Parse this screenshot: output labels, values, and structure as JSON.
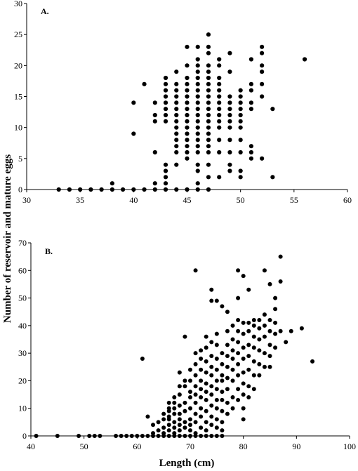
{
  "chart_data": [
    {
      "type": "scatter",
      "panel_label": "A.",
      "xlim": [
        30,
        60
      ],
      "ylim": [
        0,
        30
      ],
      "x_ticks": [
        30,
        35,
        40,
        45,
        50,
        55,
        60
      ],
      "y_ticks": [
        0,
        5,
        10,
        15,
        20,
        25,
        30
      ],
      "grid": false,
      "points": [
        [
          33,
          0
        ],
        [
          34,
          0
        ],
        [
          35,
          0
        ],
        [
          36,
          0
        ],
        [
          37,
          0
        ],
        [
          38,
          0
        ],
        [
          38,
          1
        ],
        [
          39,
          0
        ],
        [
          40,
          0
        ],
        [
          40,
          9
        ],
        [
          40,
          14
        ],
        [
          41,
          0
        ],
        [
          41,
          17
        ],
        [
          42,
          0
        ],
        [
          42,
          1
        ],
        [
          42,
          6
        ],
        [
          42,
          11
        ],
        [
          42,
          12
        ],
        [
          42,
          14
        ],
        [
          43,
          0
        ],
        [
          43,
          1
        ],
        [
          43,
          2
        ],
        [
          43,
          3
        ],
        [
          43,
          4
        ],
        [
          43,
          11
        ],
        [
          43,
          12
        ],
        [
          43,
          13
        ],
        [
          43,
          14
        ],
        [
          43,
          15
        ],
        [
          43,
          16
        ],
        [
          43,
          17
        ],
        [
          43,
          18
        ],
        [
          44,
          0
        ],
        [
          44,
          4
        ],
        [
          44,
          6
        ],
        [
          44,
          7
        ],
        [
          44,
          8
        ],
        [
          44,
          9
        ],
        [
          44,
          10
        ],
        [
          44,
          11
        ],
        [
          44,
          12
        ],
        [
          44,
          13
        ],
        [
          44,
          14
        ],
        [
          44,
          15
        ],
        [
          44,
          16
        ],
        [
          44,
          17
        ],
        [
          44,
          19
        ],
        [
          45,
          0
        ],
        [
          45,
          5
        ],
        [
          45,
          6
        ],
        [
          45,
          7
        ],
        [
          45,
          8
        ],
        [
          45,
          9
        ],
        [
          45,
          10
        ],
        [
          45,
          11
        ],
        [
          45,
          12
        ],
        [
          45,
          13
        ],
        [
          45,
          14
        ],
        [
          45,
          15
        ],
        [
          45,
          16
        ],
        [
          45,
          17
        ],
        [
          45,
          18
        ],
        [
          45,
          20
        ],
        [
          45,
          23
        ],
        [
          46,
          0
        ],
        [
          46,
          1
        ],
        [
          46,
          3
        ],
        [
          46,
          4
        ],
        [
          46,
          6
        ],
        [
          46,
          7
        ],
        [
          46,
          8
        ],
        [
          46,
          9
        ],
        [
          46,
          10
        ],
        [
          46,
          11
        ],
        [
          46,
          12
        ],
        [
          46,
          13
        ],
        [
          46,
          14
        ],
        [
          46,
          15
        ],
        [
          46,
          16
        ],
        [
          46,
          17
        ],
        [
          46,
          18
        ],
        [
          46,
          19
        ],
        [
          46,
          20
        ],
        [
          46,
          21
        ],
        [
          46,
          23
        ],
        [
          47,
          0
        ],
        [
          47,
          2
        ],
        [
          47,
          4
        ],
        [
          47,
          6
        ],
        [
          47,
          7
        ],
        [
          47,
          8
        ],
        [
          47,
          9
        ],
        [
          47,
          10
        ],
        [
          47,
          11
        ],
        [
          47,
          12
        ],
        [
          47,
          13
        ],
        [
          47,
          14
        ],
        [
          47,
          15
        ],
        [
          47,
          16
        ],
        [
          47,
          17
        ],
        [
          47,
          18
        ],
        [
          47,
          19
        ],
        [
          47,
          20
        ],
        [
          47,
          22
        ],
        [
          47,
          23
        ],
        [
          47,
          25
        ],
        [
          48,
          2
        ],
        [
          48,
          6
        ],
        [
          48,
          8
        ],
        [
          48,
          10
        ],
        [
          48,
          11
        ],
        [
          48,
          12
        ],
        [
          48,
          13
        ],
        [
          48,
          14
        ],
        [
          48,
          15
        ],
        [
          48,
          16
        ],
        [
          48,
          17
        ],
        [
          48,
          18
        ],
        [
          48,
          20
        ],
        [
          48,
          21
        ],
        [
          49,
          3
        ],
        [
          49,
          4
        ],
        [
          49,
          6
        ],
        [
          49,
          8
        ],
        [
          49,
          10
        ],
        [
          49,
          11
        ],
        [
          49,
          12
        ],
        [
          49,
          13
        ],
        [
          49,
          14
        ],
        [
          49,
          15
        ],
        [
          49,
          19
        ],
        [
          49,
          22
        ],
        [
          50,
          2
        ],
        [
          50,
          3
        ],
        [
          50,
          6
        ],
        [
          50,
          8
        ],
        [
          50,
          10
        ],
        [
          50,
          11
        ],
        [
          50,
          12
        ],
        [
          50,
          13
        ],
        [
          50,
          14
        ],
        [
          50,
          15
        ],
        [
          50,
          16
        ],
        [
          51,
          5
        ],
        [
          51,
          6
        ],
        [
          51,
          7
        ],
        [
          51,
          13
        ],
        [
          51,
          14
        ],
        [
          51,
          16
        ],
        [
          51,
          17
        ],
        [
          51,
          21
        ],
        [
          52,
          5
        ],
        [
          52,
          15
        ],
        [
          52,
          17
        ],
        [
          52,
          19
        ],
        [
          52,
          20
        ],
        [
          52,
          22
        ],
        [
          52,
          23
        ],
        [
          53,
          2
        ],
        [
          53,
          13
        ],
        [
          56,
          21
        ]
      ]
    },
    {
      "type": "scatter",
      "panel_label": "B.",
      "xlim": [
        40,
        100
      ],
      "ylim": [
        0,
        70
      ],
      "x_ticks": [
        40,
        50,
        60,
        70,
        80,
        90,
        100
      ],
      "y_ticks": [
        0,
        10,
        20,
        30,
        40,
        50,
        60,
        70
      ],
      "grid": false,
      "points": [
        [
          41,
          0
        ],
        [
          45,
          0
        ],
        [
          49,
          0
        ],
        [
          51,
          0
        ],
        [
          52,
          0
        ],
        [
          53,
          0
        ],
        [
          56,
          0
        ],
        [
          57,
          0
        ],
        [
          58,
          0
        ],
        [
          59,
          0
        ],
        [
          60,
          0
        ],
        [
          61,
          0
        ],
        [
          61,
          28
        ],
        [
          62,
          0
        ],
        [
          62,
          7
        ],
        [
          63,
          0
        ],
        [
          63,
          1
        ],
        [
          63,
          4
        ],
        [
          64,
          0
        ],
        [
          64,
          2
        ],
        [
          64,
          5
        ],
        [
          65,
          0
        ],
        [
          65,
          1
        ],
        [
          65,
          3
        ],
        [
          65,
          6
        ],
        [
          65,
          8
        ],
        [
          66,
          0
        ],
        [
          66,
          2
        ],
        [
          66,
          4
        ],
        [
          66,
          6
        ],
        [
          66,
          7
        ],
        [
          66,
          9
        ],
        [
          66,
          10
        ],
        [
          66,
          12
        ],
        [
          67,
          0
        ],
        [
          67,
          1
        ],
        [
          67,
          3
        ],
        [
          67,
          5
        ],
        [
          67,
          8
        ],
        [
          67,
          10
        ],
        [
          67,
          12
        ],
        [
          67,
          14
        ],
        [
          68,
          0
        ],
        [
          68,
          2
        ],
        [
          68,
          4
        ],
        [
          68,
          6
        ],
        [
          68,
          8
        ],
        [
          68,
          11
        ],
        [
          68,
          15
        ],
        [
          68,
          18
        ],
        [
          68,
          23
        ],
        [
          69,
          0
        ],
        [
          69,
          3
        ],
        [
          69,
          5
        ],
        [
          69,
          9
        ],
        [
          69,
          12
        ],
        [
          69,
          18
        ],
        [
          69,
          20
        ],
        [
          69,
          36
        ],
        [
          70,
          0
        ],
        [
          70,
          2
        ],
        [
          70,
          4
        ],
        [
          70,
          6
        ],
        [
          70,
          10
        ],
        [
          70,
          14
        ],
        [
          70,
          16
        ],
        [
          70,
          20
        ],
        [
          70,
          24
        ],
        [
          71,
          0
        ],
        [
          71,
          1
        ],
        [
          71,
          5
        ],
        [
          71,
          8
        ],
        [
          71,
          12
        ],
        [
          71,
          15
        ],
        [
          71,
          18
        ],
        [
          71,
          22
        ],
        [
          71,
          26
        ],
        [
          71,
          30
        ],
        [
          71,
          60
        ],
        [
          72,
          0
        ],
        [
          72,
          3
        ],
        [
          72,
          7
        ],
        [
          72,
          10
        ],
        [
          72,
          14
        ],
        [
          72,
          17
        ],
        [
          72,
          20
        ],
        [
          72,
          24
        ],
        [
          72,
          28
        ],
        [
          72,
          31
        ],
        [
          73,
          0
        ],
        [
          73,
          2
        ],
        [
          73,
          5
        ],
        [
          73,
          9
        ],
        [
          73,
          13
        ],
        [
          73,
          16
        ],
        [
          73,
          19
        ],
        [
          73,
          23
        ],
        [
          73,
          27
        ],
        [
          73,
          32
        ],
        [
          73,
          36
        ],
        [
          74,
          0
        ],
        [
          74,
          4
        ],
        [
          74,
          7
        ],
        [
          74,
          11
        ],
        [
          74,
          15
        ],
        [
          74,
          18
        ],
        [
          74,
          22
        ],
        [
          74,
          25
        ],
        [
          74,
          29
        ],
        [
          74,
          34
        ],
        [
          74,
          49
        ],
        [
          74,
          53
        ],
        [
          75,
          0
        ],
        [
          75,
          3
        ],
        [
          75,
          6
        ],
        [
          75,
          10
        ],
        [
          75,
          13
        ],
        [
          75,
          17
        ],
        [
          75,
          20
        ],
        [
          75,
          24
        ],
        [
          75,
          28
        ],
        [
          75,
          33
        ],
        [
          75,
          37
        ],
        [
          75,
          49
        ],
        [
          76,
          0
        ],
        [
          76,
          2
        ],
        [
          76,
          5
        ],
        [
          76,
          9
        ],
        [
          76,
          13
        ],
        [
          76,
          16
        ],
        [
          76,
          20
        ],
        [
          76,
          22
        ],
        [
          76,
          26
        ],
        [
          76,
          30
        ],
        [
          76,
          47
        ],
        [
          77,
          8
        ],
        [
          77,
          12
        ],
        [
          77,
          17
        ],
        [
          77,
          21
        ],
        [
          77,
          25
        ],
        [
          77,
          29
        ],
        [
          77,
          33
        ],
        [
          77,
          38
        ],
        [
          77,
          45
        ],
        [
          78,
          10
        ],
        [
          78,
          14
        ],
        [
          78,
          20
        ],
        [
          78,
          24
        ],
        [
          78,
          28
        ],
        [
          78,
          31
        ],
        [
          78,
          35
        ],
        [
          78,
          40
        ],
        [
          79,
          13
        ],
        [
          79,
          17
        ],
        [
          79,
          22
        ],
        [
          79,
          26
        ],
        [
          79,
          30
        ],
        [
          79,
          34
        ],
        [
          79,
          38
        ],
        [
          79,
          42
        ],
        [
          79,
          50
        ],
        [
          79,
          60
        ],
        [
          80,
          6
        ],
        [
          80,
          10
        ],
        [
          80,
          15
        ],
        [
          80,
          19
        ],
        [
          80,
          23
        ],
        [
          80,
          28
        ],
        [
          80,
          32
        ],
        [
          80,
          37
        ],
        [
          80,
          41
        ],
        [
          80,
          58
        ],
        [
          81,
          14
        ],
        [
          81,
          18
        ],
        [
          81,
          24
        ],
        [
          81,
          29
        ],
        [
          81,
          33
        ],
        [
          81,
          38
        ],
        [
          81,
          41
        ],
        [
          81,
          53
        ],
        [
          82,
          17
        ],
        [
          82,
          22
        ],
        [
          82,
          27
        ],
        [
          82,
          32
        ],
        [
          82,
          36
        ],
        [
          82,
          40
        ],
        [
          82,
          42
        ],
        [
          83,
          22
        ],
        [
          83,
          26
        ],
        [
          83,
          31
        ],
        [
          83,
          35
        ],
        [
          83,
          39
        ],
        [
          83,
          42
        ],
        [
          84,
          25
        ],
        [
          84,
          30
        ],
        [
          84,
          36
        ],
        [
          84,
          40
        ],
        [
          84,
          44
        ],
        [
          84,
          60
        ],
        [
          85,
          25
        ],
        [
          85,
          29
        ],
        [
          85,
          33
        ],
        [
          85,
          38
        ],
        [
          85,
          42
        ],
        [
          85,
          55
        ],
        [
          86,
          32
        ],
        [
          86,
          37
        ],
        [
          86,
          41
        ],
        [
          86,
          46
        ],
        [
          86,
          50
        ],
        [
          87,
          38
        ],
        [
          87,
          56
        ],
        [
          87,
          65
        ],
        [
          88,
          34
        ],
        [
          89,
          38
        ],
        [
          91,
          39
        ],
        [
          93,
          27
        ]
      ]
    }
  ],
  "y_axis_title": "Number of reservoir and mature eggs",
  "x_axis_title": "Length (cm)"
}
